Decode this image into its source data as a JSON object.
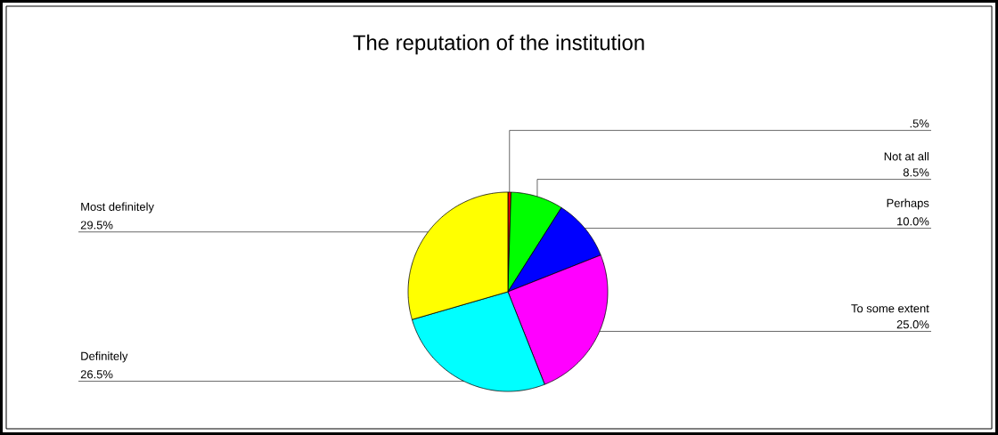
{
  "chart_data": {
    "type": "pie",
    "title": "The reputation of the institution",
    "categories": [
      null,
      "Not at all",
      "Perhaps",
      "To some extent",
      "Definitely",
      "Most definitely"
    ],
    "values": [
      0.5,
      8.5,
      10.0,
      25.0,
      26.5,
      29.5
    ],
    "colors": [
      "#ff0000",
      "#00ff00",
      "#0000ff",
      "#ff00ff",
      "#00ffff",
      "#ffff00"
    ],
    "value_labels": [
      ".5%",
      "8.5%",
      "10.0%",
      "25.0%",
      "26.5%",
      "29.5%"
    ]
  }
}
